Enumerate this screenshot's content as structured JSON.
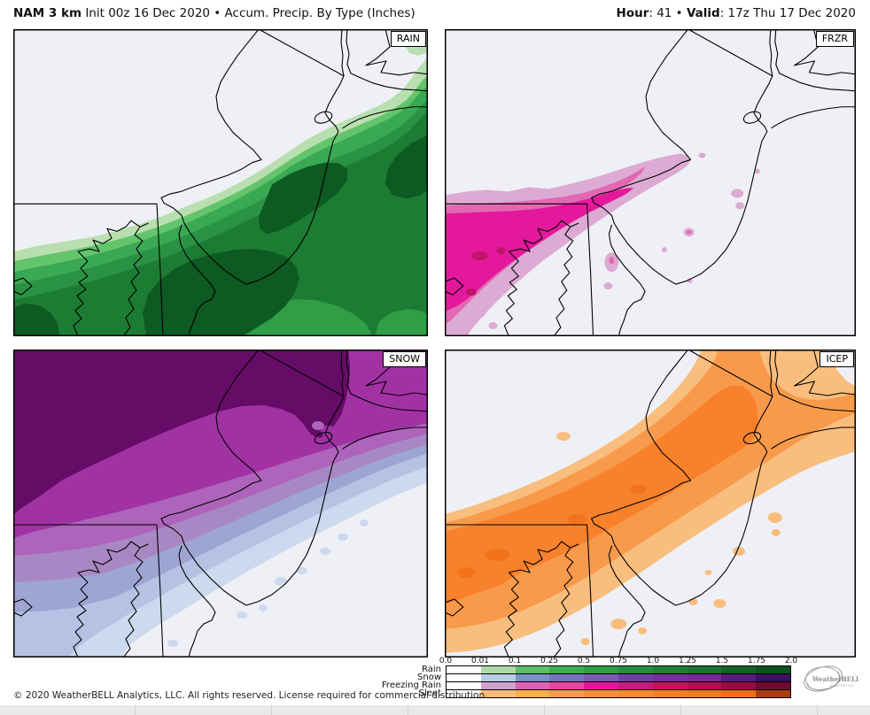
{
  "header": {
    "model": "NAM 3 km",
    "left_rest": " Init 00z 16 Dec 2020 • Accum. Precip. By Type (Inches)",
    "hour_label": "Hour",
    "hour_rest": ": 41 • ",
    "valid_label": "Valid",
    "valid_rest": ": 17z Thu 17 Dec 2020"
  },
  "panels": [
    {
      "id": "rain",
      "label": "RAIN"
    },
    {
      "id": "frzr",
      "label": "FRZR"
    },
    {
      "id": "snow",
      "label": "SNOW"
    },
    {
      "id": "icep",
      "label": "ICEP"
    }
  ],
  "legend": {
    "ticks": [
      "0.0",
      "0.01",
      "0.1",
      "0.25",
      "0.5",
      "0.75",
      "1.0",
      "1.25",
      "1.5",
      "1.75",
      "2.0"
    ],
    "rows": [
      {
        "label": "Rain",
        "colors": [
          "#ffffff",
          "#aedaa6",
          "#5fbf68",
          "#3fae53",
          "#2f9e47",
          "#288c3e",
          "#1f8034",
          "#1b7330",
          "#136327",
          "#0b531f"
        ]
      },
      {
        "label": "Snow",
        "colors": [
          "#ffffff",
          "#b6cbe6",
          "#7d90ca",
          "#7973bd",
          "#7b5cb3",
          "#6f3fa6",
          "#7a2da0",
          "#782a97",
          "#5c1a80",
          "#3c0f60"
        ]
      },
      {
        "label": "Freezing Rain",
        "colors": [
          "#ffffff",
          "#d0a3cc",
          "#e161b4",
          "#e5479f",
          "#e3169b",
          "#c51d7b",
          "#c11356",
          "#b31050",
          "#970d3f",
          "#6e0a2b"
        ]
      },
      {
        "label": "Sleet",
        "colors": [
          "#ffffff",
          "#f7bd78",
          "#fbb145",
          "#f89c4e",
          "#f98e3a",
          "#f78c2b",
          "#f57e22",
          "#ef7c1e",
          "#f0701a",
          "#ab3c12"
        ]
      }
    ]
  },
  "footer": {
    "copyright": "© 2020 WeatherBELL Analytics, LLC. All rights reserved. License required for commercial distribution."
  },
  "logo": {
    "name": "WeatherBELL",
    "sub": "ANALYTICS LLC"
  }
}
